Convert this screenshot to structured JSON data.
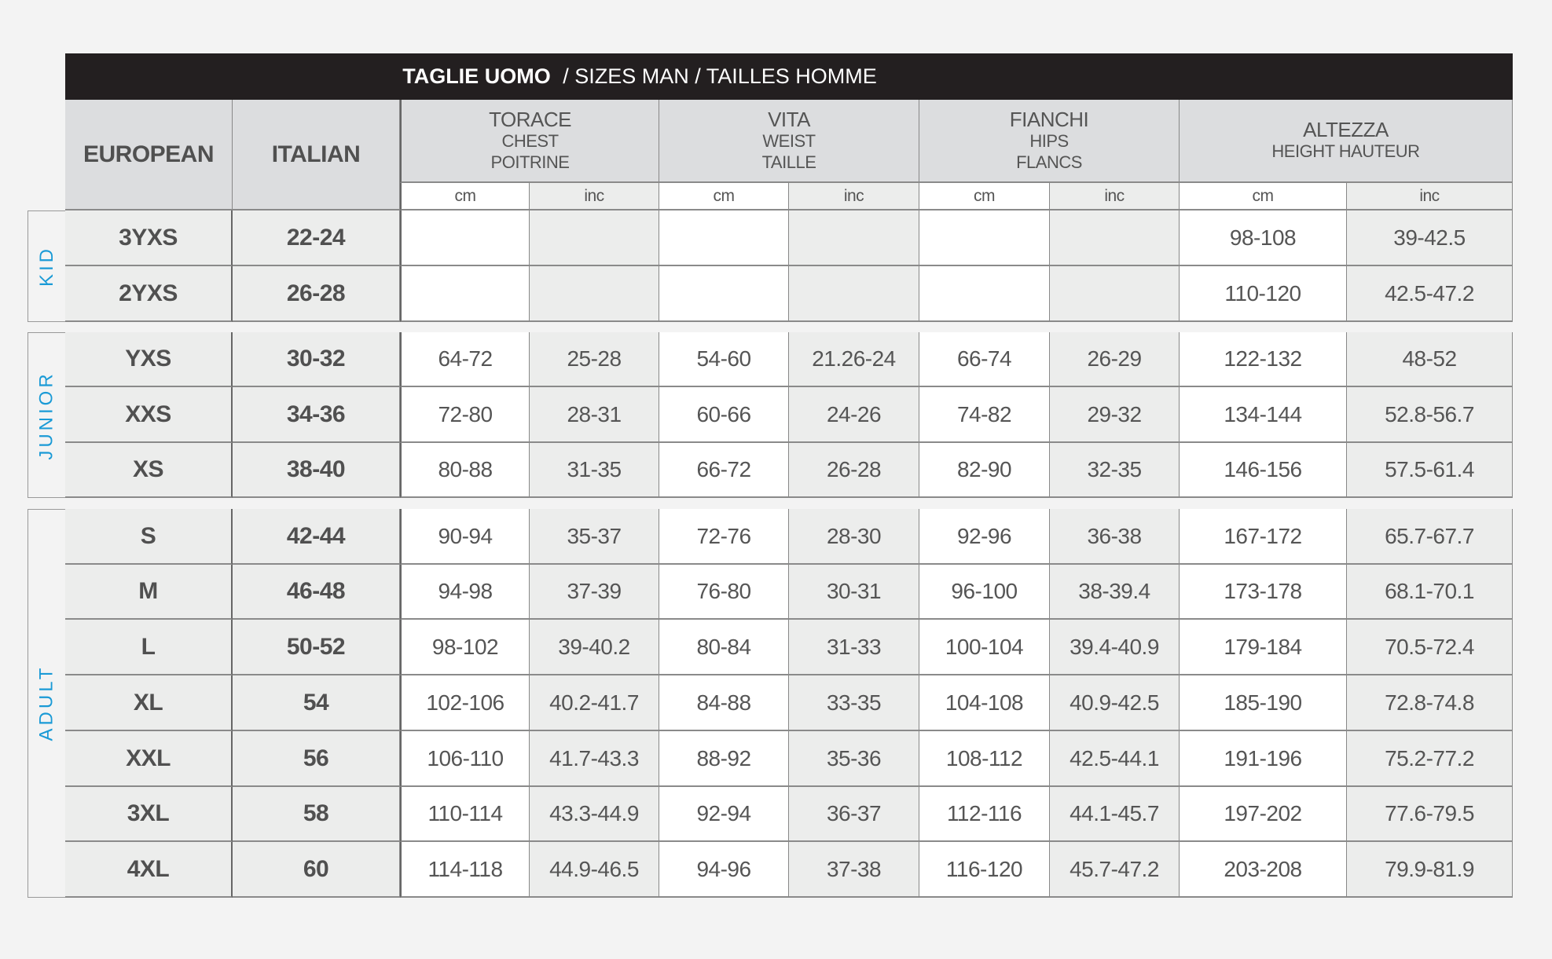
{
  "title": {
    "bold": "TAGLIE UOMO",
    "rest": " / SIZES MAN / TAILLES HOMME"
  },
  "headers": {
    "european": "EUROPEAN",
    "italian": "ITALIAN",
    "measures": [
      {
        "lines": [
          "TORACE",
          "CHEST",
          "POITRINE"
        ]
      },
      {
        "lines": [
          "VITA",
          "WEIST",
          "TAILLE"
        ]
      },
      {
        "lines": [
          "FIANCHI",
          "HIPS",
          "FLANCS"
        ]
      },
      {
        "lines": [
          "ALTEZZA",
          "HEIGHT HAUTEUR"
        ]
      }
    ],
    "units": [
      "cm",
      "inc",
      "cm",
      "inc",
      "cm",
      "inc",
      "cm",
      "inc"
    ]
  },
  "colors": {
    "group_label": "#1a9ad6",
    "title_bar": "#231f20",
    "header_bg": "#dcdddf"
  },
  "groups": [
    {
      "label": "KID",
      "rows": [
        {
          "european": "3YXS",
          "italian": "22-24",
          "values": [
            "",
            "",
            "",
            "",
            "",
            "",
            "98-108",
            "39-42.5"
          ]
        },
        {
          "european": "2YXS",
          "italian": "26-28",
          "values": [
            "",
            "",
            "",
            "",
            "",
            "",
            "110-120",
            "42.5-47.2"
          ]
        }
      ]
    },
    {
      "label": "JUNIOR",
      "rows": [
        {
          "european": "YXS",
          "italian": "30-32",
          "values": [
            "64-72",
            "25-28",
            "54-60",
            "21.26-24",
            "66-74",
            "26-29",
            "122-132",
            "48-52"
          ]
        },
        {
          "european": "XXS",
          "italian": "34-36",
          "values": [
            "72-80",
            "28-31",
            "60-66",
            "24-26",
            "74-82",
            "29-32",
            "134-144",
            "52.8-56.7"
          ]
        },
        {
          "european": "XS",
          "italian": "38-40",
          "values": [
            "80-88",
            "31-35",
            "66-72",
            "26-28",
            "82-90",
            "32-35",
            "146-156",
            "57.5-61.4"
          ]
        }
      ]
    },
    {
      "label": "ADULT",
      "rows": [
        {
          "european": "S",
          "italian": "42-44",
          "values": [
            "90-94",
            "35-37",
            "72-76",
            "28-30",
            "92-96",
            "36-38",
            "167-172",
            "65.7-67.7"
          ]
        },
        {
          "european": "M",
          "italian": "46-48",
          "values": [
            "94-98",
            "37-39",
            "76-80",
            "30-31",
            "96-100",
            "38-39.4",
            "173-178",
            "68.1-70.1"
          ]
        },
        {
          "european": "L",
          "italian": "50-52",
          "values": [
            "98-102",
            "39-40.2",
            "80-84",
            "31-33",
            "100-104",
            "39.4-40.9",
            "179-184",
            "70.5-72.4"
          ]
        },
        {
          "european": "XL",
          "italian": "54",
          "values": [
            "102-106",
            "40.2-41.7",
            "84-88",
            "33-35",
            "104-108",
            "40.9-42.5",
            "185-190",
            "72.8-74.8"
          ]
        },
        {
          "european": "XXL",
          "italian": "56",
          "values": [
            "106-110",
            "41.7-43.3",
            "88-92",
            "35-36",
            "108-112",
            "42.5-44.1",
            "191-196",
            "75.2-77.2"
          ]
        },
        {
          "european": "3XL",
          "italian": "58",
          "values": [
            "110-114",
            "43.3-44.9",
            "92-94",
            "36-37",
            "112-116",
            "44.1-45.7",
            "197-202",
            "77.6-79.5"
          ]
        },
        {
          "european": "4XL",
          "italian": "60",
          "values": [
            "114-118",
            "44.9-46.5",
            "94-96",
            "37-38",
            "116-120",
            "45.7-47.2",
            "203-208",
            "79.9-81.9"
          ]
        }
      ]
    }
  ]
}
